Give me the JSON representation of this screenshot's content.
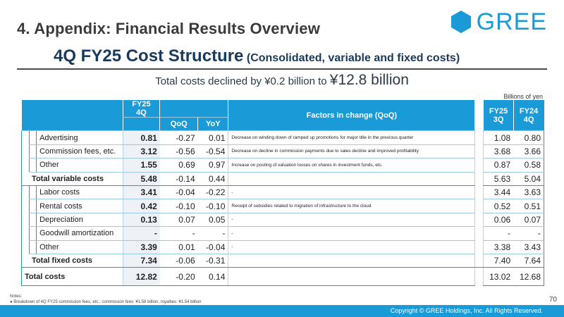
{
  "header": {
    "section_title": "4. Appendix: Financial Results Overview",
    "logo_text": "GREE",
    "main_title": "4Q FY25 Cost Structure",
    "main_title_suffix": "(Consolidated, variable and fixed costs)",
    "subtitle_prefix": "Total costs declined by ¥0.2 billion to ",
    "subtitle_amount": "¥12.8 billion",
    "units": "Billions of yen"
  },
  "colors": {
    "brand_blue": "#1a9ad6",
    "title_navy": "#1a3a5c",
    "highlight_cell": "#eef2f7"
  },
  "table": {
    "headers": {
      "fy25_4q_line1": "FY25",
      "fy25_4q_line2": "4Q",
      "qoq": "QoQ",
      "yoy": "YoY",
      "factors": "Factors in change (QoQ)",
      "fy25_3q_line1": "FY25",
      "fy25_3q_line2": "3Q",
      "fy24_4q_line1": "FY24",
      "fy24_4q_line2": "4Q"
    },
    "variable_rows": [
      {
        "label": "Advertising",
        "fy25_4q": "0.81",
        "qoq": "-0.27",
        "yoy": "0.01",
        "factor": "Decrease on winding down of ramped up promotions for major title in the previous quarter",
        "fy25_3q": "1.08",
        "fy24_4q": "0.80"
      },
      {
        "label": "Commission fees, etc.",
        "fy25_4q": "3.12",
        "qoq": "-0.56",
        "yoy": "-0.54",
        "factor": "Decrease on decline in commission payments due to sales decline and improved profitability",
        "fy25_3q": "3.68",
        "fy24_4q": "3.66"
      },
      {
        "label": "Other",
        "fy25_4q": "1.55",
        "qoq": "0.69",
        "yoy": "0.97",
        "factor": "Increase on posting of valuation losses on shares in investment funds, etc.",
        "fy25_3q": "0.87",
        "fy24_4q": "0.58"
      }
    ],
    "total_variable": {
      "label": "Total variable costs",
      "fy25_4q": "5.48",
      "qoq": "-0.14",
      "yoy": "0.44",
      "factor": "",
      "fy25_3q": "5.63",
      "fy24_4q": "5.04"
    },
    "fixed_rows": [
      {
        "label": "Labor costs",
        "fy25_4q": "3.41",
        "qoq": "-0.04",
        "yoy": "-0.22",
        "factor": "-",
        "fy25_3q": "3.44",
        "fy24_4q": "3.63"
      },
      {
        "label": "Rental costs",
        "fy25_4q": "0.42",
        "qoq": "-0.10",
        "yoy": "-0.10",
        "factor": "Receipt of subsidies related to migration of infrastructure to the cloud",
        "fy25_3q": "0.52",
        "fy24_4q": "0.51"
      },
      {
        "label": "Depreciation",
        "fy25_4q": "0.13",
        "qoq": "0.07",
        "yoy": "0.05",
        "factor": "-",
        "fy25_3q": "0.06",
        "fy24_4q": "0.07"
      },
      {
        "label": "Goodwill amortization",
        "fy25_4q": "-",
        "qoq": "-",
        "yoy": "-",
        "factor": "-",
        "fy25_3q": "-",
        "fy24_4q": "-"
      },
      {
        "label": "Other",
        "fy25_4q": "3.39",
        "qoq": "0.01",
        "yoy": "-0.04",
        "factor": "-",
        "fy25_3q": "3.38",
        "fy24_4q": "3.43"
      }
    ],
    "total_fixed": {
      "label": "Total fixed costs",
      "fy25_4q": "7.34",
      "qoq": "-0.06",
      "yoy": "-0.31",
      "factor": "",
      "fy25_3q": "7.40",
      "fy24_4q": "7.64"
    },
    "total_costs": {
      "label": "Total costs",
      "fy25_4q": "12.82",
      "qoq": "-0.20",
      "yoy": "0.14",
      "factor": "",
      "fy25_3q": "13.02",
      "fy24_4q": "12.68"
    }
  },
  "footer": {
    "notes_label": "Notes:",
    "note_1": "Breakdown of 4Q FY25 commission fees, etc.: commission fees: ¥1.58 billion, royalties: ¥1.54 billion",
    "page_number": "70",
    "copyright": "Copyright © GREE Holdings, Inc. All Rights Reserved."
  }
}
